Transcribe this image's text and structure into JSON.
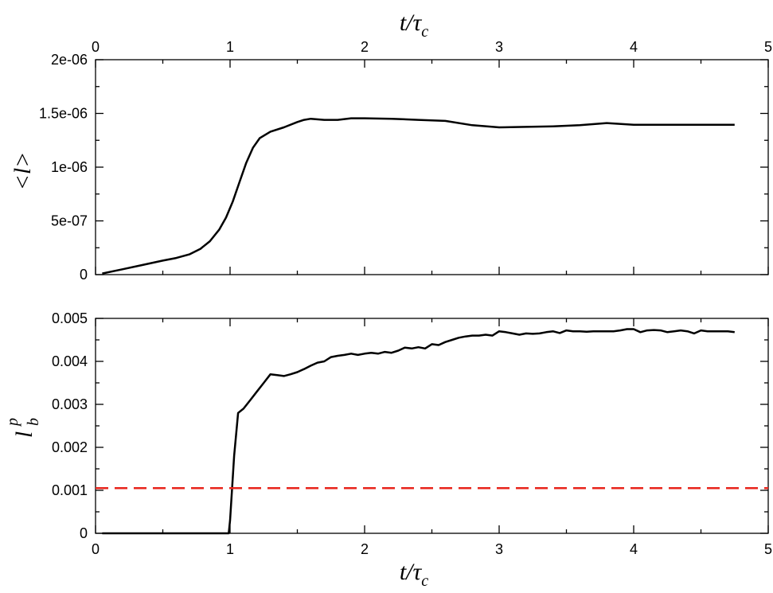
{
  "chart_data": [
    {
      "type": "line",
      "title": "",
      "top_xlabel": {
        "main": "t/τ",
        "sub": "c"
      },
      "ylabel": "<l>",
      "xlim": [
        0,
        5
      ],
      "ylim": [
        0,
        2e-06
      ],
      "xticks": [
        0,
        1,
        2,
        3,
        4,
        5
      ],
      "xtick_labels": [
        "0",
        "1",
        "2",
        "3",
        "4",
        "5"
      ],
      "yticks": [
        0,
        5e-07,
        1e-06,
        1.5e-06,
        2e-06
      ],
      "ytick_labels": [
        "0",
        "5e-07",
        "1e-06",
        "1.5e-06",
        "2e-06"
      ],
      "grid": false,
      "series": [
        {
          "color": "#000000",
          "x": [
            0.05,
            0.2,
            0.35,
            0.5,
            0.6,
            0.7,
            0.78,
            0.85,
            0.92,
            0.97,
            1.02,
            1.07,
            1.12,
            1.17,
            1.22,
            1.3,
            1.4,
            1.5,
            1.55,
            1.6,
            1.7,
            1.8,
            1.9,
            2.0,
            2.2,
            2.4,
            2.6,
            2.8,
            3.0,
            3.2,
            3.4,
            3.6,
            3.8,
            4.0,
            4.2,
            4.4,
            4.6,
            4.75
          ],
          "y": [
            1e-08,
            5e-08,
            9e-08,
            1.3e-07,
            1.55e-07,
            1.9e-07,
            2.4e-07,
            3.1e-07,
            4.2e-07,
            5.3e-07,
            6.8e-07,
            8.6e-07,
            1.04e-06,
            1.18e-06,
            1.27e-06,
            1.33e-06,
            1.37e-06,
            1.42e-06,
            1.44e-06,
            1.45e-06,
            1.44e-06,
            1.44e-06,
            1.455e-06,
            1.455e-06,
            1.45e-06,
            1.44e-06,
            1.43e-06,
            1.39e-06,
            1.37e-06,
            1.375e-06,
            1.38e-06,
            1.39e-06,
            1.41e-06,
            1.395e-06,
            1.395e-06,
            1.395e-06,
            1.395e-06,
            1.395e-06
          ]
        }
      ]
    },
    {
      "type": "line",
      "title": "",
      "xlabel": {
        "main": "t/τ",
        "sub": "c"
      },
      "ylabel": {
        "main": "l",
        "sub": "b",
        "sup": "p"
      },
      "xlim": [
        0,
        5
      ],
      "ylim": [
        0,
        0.005
      ],
      "xticks": [
        0,
        1,
        2,
        3,
        4,
        5
      ],
      "xtick_labels": [
        "0",
        "1",
        "2",
        "3",
        "4",
        "5"
      ],
      "yticks": [
        0,
        0.001,
        0.002,
        0.003,
        0.004,
        0.005
      ],
      "ytick_labels": [
        "0",
        "0.001",
        "0.002",
        "0.003",
        "0.004",
        "0.005"
      ],
      "grid": false,
      "series": [
        {
          "color": "#000000",
          "x": [
            0.05,
            0.3,
            0.6,
            0.9,
            0.99,
            1.0,
            1.03,
            1.06,
            1.1,
            1.15,
            1.2,
            1.25,
            1.3,
            1.35,
            1.4,
            1.45,
            1.5,
            1.55,
            1.6,
            1.65,
            1.7,
            1.75,
            1.8,
            1.85,
            1.9,
            1.95,
            2.0,
            2.05,
            2.1,
            2.15,
            2.2,
            2.25,
            2.3,
            2.35,
            2.4,
            2.45,
            2.5,
            2.55,
            2.6,
            2.65,
            2.7,
            2.75,
            2.8,
            2.85,
            2.9,
            2.95,
            3.0,
            3.05,
            3.1,
            3.15,
            3.2,
            3.25,
            3.3,
            3.35,
            3.4,
            3.45,
            3.5,
            3.55,
            3.6,
            3.65,
            3.7,
            3.75,
            3.8,
            3.85,
            3.9,
            3.95,
            4.0,
            4.05,
            4.1,
            4.15,
            4.2,
            4.25,
            4.3,
            4.35,
            4.4,
            4.45,
            4.5,
            4.55,
            4.6,
            4.65,
            4.7,
            4.75
          ],
          "y": [
            0.0,
            0.0,
            0.0,
            0.0,
            0.0,
            0.0003,
            0.0018,
            0.0028,
            0.0029,
            0.0031,
            0.0033,
            0.0035,
            0.0037,
            0.00368,
            0.00366,
            0.0037,
            0.00375,
            0.00382,
            0.0039,
            0.00397,
            0.004,
            0.0041,
            0.00413,
            0.00415,
            0.00418,
            0.00415,
            0.00418,
            0.0042,
            0.00418,
            0.00422,
            0.0042,
            0.00425,
            0.00432,
            0.0043,
            0.00433,
            0.0043,
            0.0044,
            0.00438,
            0.00445,
            0.0045,
            0.00455,
            0.00458,
            0.0046,
            0.0046,
            0.00462,
            0.0046,
            0.0047,
            0.00468,
            0.00465,
            0.00462,
            0.00465,
            0.00464,
            0.00465,
            0.00468,
            0.0047,
            0.00466,
            0.00472,
            0.0047,
            0.0047,
            0.00469,
            0.0047,
            0.0047,
            0.0047,
            0.0047,
            0.00472,
            0.00475,
            0.00475,
            0.00468,
            0.00472,
            0.00473,
            0.00472,
            0.00468,
            0.0047,
            0.00472,
            0.0047,
            0.00465,
            0.00472,
            0.0047,
            0.0047,
            0.0047,
            0.0047,
            0.00468
          ]
        },
        {
          "color": "#e8241b",
          "style": "dashed",
          "x": [
            0,
            5
          ],
          "y": [
            0.00105,
            0.00105
          ]
        }
      ]
    }
  ]
}
